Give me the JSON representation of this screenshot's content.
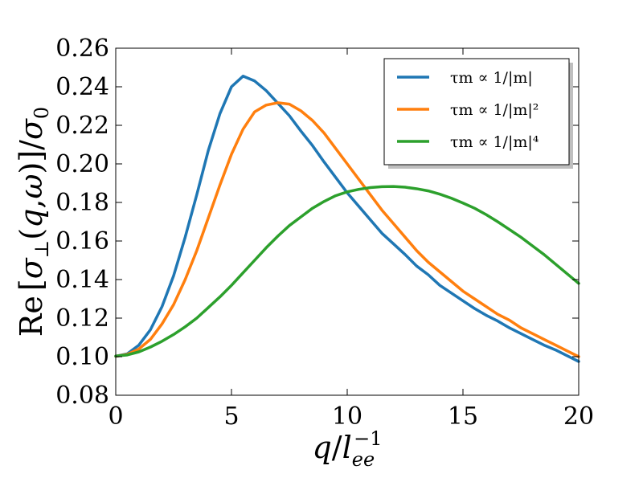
{
  "chart_data": {
    "type": "line",
    "title": "",
    "xlabel": "q/l_ee^{-1}",
    "ylabel": "Re[σ⊥(q,ω)]/σ0",
    "xlim": [
      0,
      20
    ],
    "ylim": [
      0.08,
      0.26
    ],
    "x_ticks": [
      0,
      5,
      10,
      15,
      20
    ],
    "y_ticks": [
      0.08,
      0.1,
      0.12,
      0.14,
      0.16,
      0.18,
      0.2,
      0.22,
      0.24,
      0.26
    ],
    "grid": false,
    "legend_position": "top-right",
    "series": [
      {
        "name": "τm ∝ 1/|m|",
        "color": "#1f77b4",
        "x": [
          0,
          0.5,
          1,
          1.5,
          2,
          2.5,
          3,
          3.5,
          4,
          4.5,
          5,
          5.5,
          6,
          6.5,
          7,
          7.5,
          8,
          8.5,
          9,
          9.5,
          10,
          10.5,
          11,
          11.5,
          12,
          12.5,
          13,
          13.5,
          14,
          14.5,
          15,
          15.5,
          16,
          16.5,
          17,
          17.5,
          18,
          18.5,
          19,
          19.5,
          20
        ],
        "y": [
          0.1002,
          0.1015,
          0.106,
          0.114,
          0.126,
          0.142,
          0.162,
          0.184,
          0.207,
          0.226,
          0.24,
          0.2455,
          0.243,
          0.238,
          0.2315,
          0.225,
          0.217,
          0.2095,
          0.201,
          0.193,
          0.185,
          0.178,
          0.171,
          0.164,
          0.1585,
          0.153,
          0.147,
          0.1425,
          0.137,
          0.133,
          0.129,
          0.125,
          0.1215,
          0.1185,
          0.115,
          0.112,
          0.109,
          0.106,
          0.1035,
          0.1005,
          0.0975
        ]
      },
      {
        "name": "τm ∝ 1/|m|²",
        "color": "#ff7f0e",
        "x": [
          0,
          0.5,
          1,
          1.5,
          2,
          2.5,
          3,
          3.5,
          4,
          4.5,
          5,
          5.5,
          6,
          6.5,
          7,
          7.5,
          8,
          8.5,
          9,
          9.5,
          10,
          10.5,
          11,
          11.5,
          12,
          12.5,
          13,
          13.5,
          14,
          14.5,
          15,
          15.5,
          16,
          16.5,
          17,
          17.5,
          18,
          18.5,
          19,
          19.5,
          20
        ],
        "y": [
          0.1002,
          0.1012,
          0.104,
          0.109,
          0.117,
          0.127,
          0.14,
          0.155,
          0.172,
          0.189,
          0.205,
          0.218,
          0.227,
          0.2305,
          0.2317,
          0.231,
          0.2275,
          0.2225,
          0.216,
          0.208,
          0.2,
          0.192,
          0.184,
          0.176,
          0.169,
          0.162,
          0.155,
          0.149,
          0.144,
          0.139,
          0.134,
          0.13,
          0.126,
          0.122,
          0.119,
          0.115,
          0.112,
          0.109,
          0.106,
          0.103,
          0.1
        ]
      },
      {
        "name": "τm ∝ 1/|m|⁴",
        "color": "#2ca02c",
        "x": [
          0,
          0.5,
          1,
          1.5,
          2,
          2.5,
          3,
          3.5,
          4,
          4.5,
          5,
          5.5,
          6,
          6.5,
          7,
          7.5,
          8,
          8.5,
          9,
          9.5,
          10,
          10.5,
          11,
          11.5,
          12,
          12.5,
          13,
          13.5,
          14,
          14.5,
          15,
          15.5,
          16,
          16.5,
          17,
          17.5,
          18,
          18.5,
          19,
          19.5,
          20
        ],
        "y": [
          0.1003,
          0.1009,
          0.1025,
          0.105,
          0.108,
          0.1115,
          0.1155,
          0.12,
          0.1255,
          0.131,
          0.137,
          0.1435,
          0.15,
          0.1565,
          0.1625,
          0.168,
          0.1725,
          0.177,
          0.1805,
          0.1835,
          0.1855,
          0.1868,
          0.1877,
          0.1882,
          0.1883,
          0.1879,
          0.1871,
          0.186,
          0.1843,
          0.1822,
          0.1797,
          0.177,
          0.1737,
          0.17,
          0.166,
          0.162,
          0.1575,
          0.153,
          0.148,
          0.143,
          0.138
        ]
      }
    ]
  }
}
